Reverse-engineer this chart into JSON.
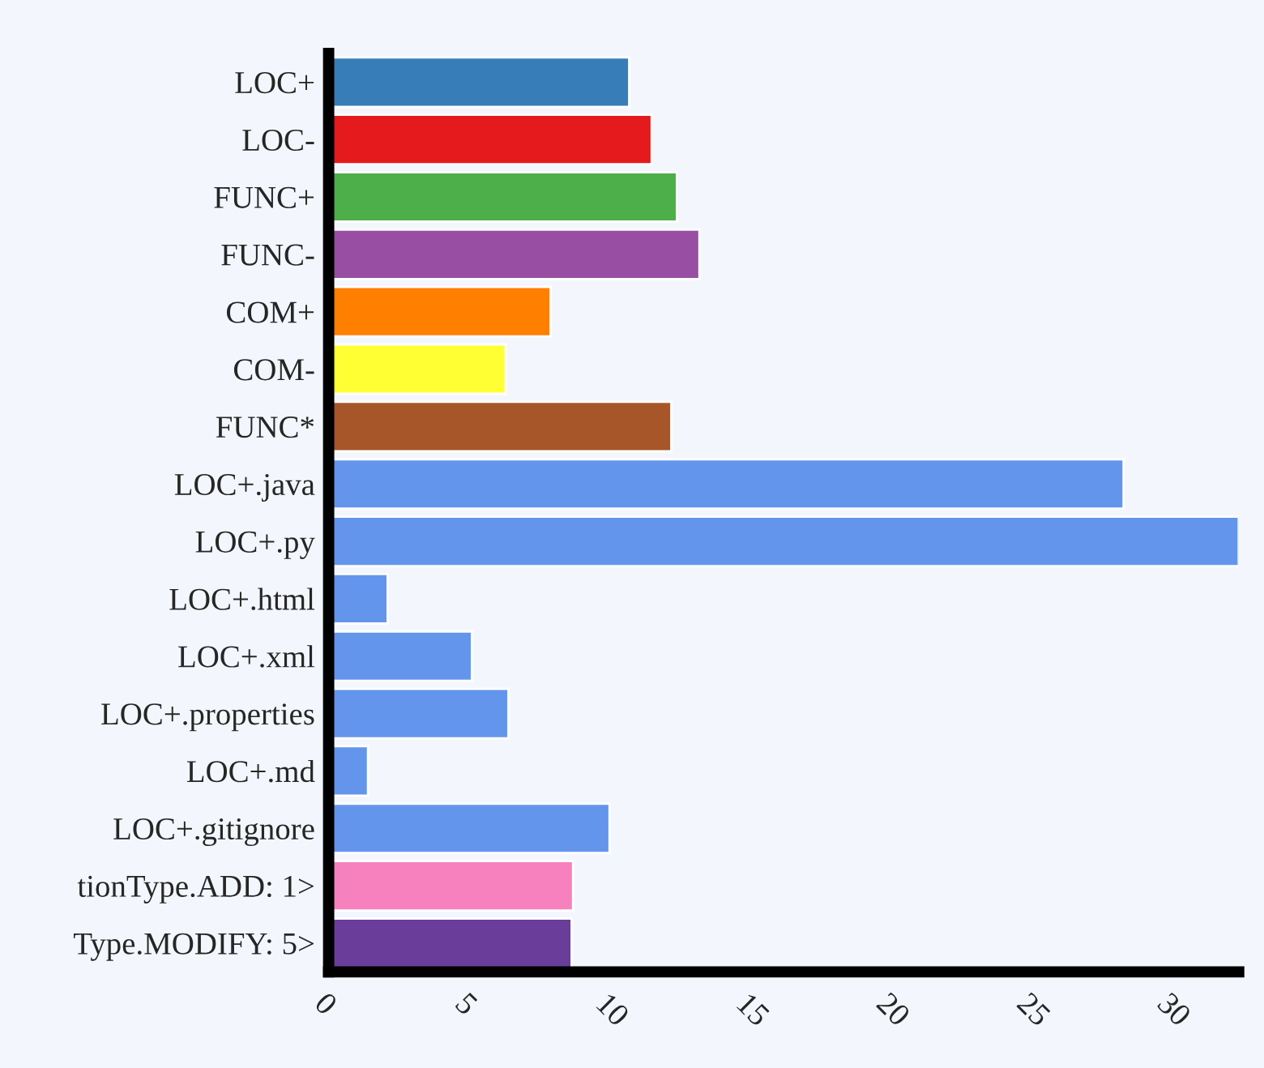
{
  "chart_data": {
    "type": "bar",
    "orientation": "horizontal",
    "categories": [
      "LOC+",
      "LOC-",
      "FUNC+",
      "FUNC-",
      "COM+",
      "COM-",
      "FUNC*",
      "LOC+.java",
      "LOC+.py",
      "LOC+.html",
      "LOC+.xml",
      "LOC+.properties",
      "LOC+.md",
      "LOC+.gitignore",
      "tionType.ADD: 1>",
      "Type.MODIFY: 5>"
    ],
    "values": [
      10.7,
      11.5,
      12.4,
      13.2,
      7.9,
      6.3,
      12.2,
      28.3,
      32.4,
      2.1,
      5.1,
      6.4,
      1.4,
      10.0,
      8.7,
      8.65
    ],
    "colors": [
      "#377eb8",
      "#e41a1c",
      "#4daf4a",
      "#984ea3",
      "#ff7f00",
      "#ffff33",
      "#a65628",
      "#6495ed",
      "#6495ed",
      "#6495ed",
      "#6495ed",
      "#6495ed",
      "#6495ed",
      "#6495ed",
      "#f781bf",
      "#6a3d9a"
    ],
    "xlim": [
      0,
      32.4
    ],
    "xticks": [
      0,
      5,
      10,
      15,
      20,
      25,
      30
    ],
    "grid": false,
    "legend": false
  }
}
